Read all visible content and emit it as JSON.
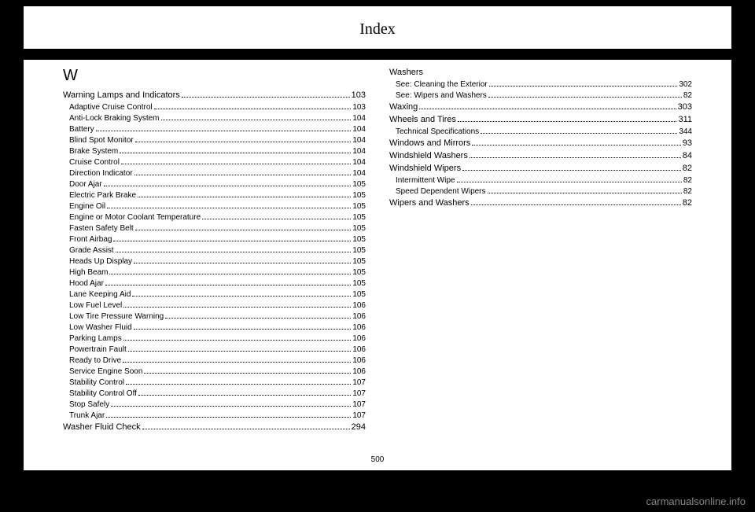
{
  "header": "Index",
  "page_number": "500",
  "watermark": "carmanualsonline.info",
  "section_letter": "W",
  "entries": [
    {
      "label": "Warning Lamps and Indicators",
      "page": "103",
      "sub": false
    },
    {
      "label": "Adaptive Cruise Control",
      "page": "103",
      "sub": true
    },
    {
      "label": "Anti-Lock Braking System",
      "page": "104",
      "sub": true
    },
    {
      "label": "Battery",
      "page": "104",
      "sub": true
    },
    {
      "label": "Blind Spot Monitor",
      "page": "104",
      "sub": true
    },
    {
      "label": "Brake System",
      "page": "104",
      "sub": true
    },
    {
      "label": "Cruise Control",
      "page": "104",
      "sub": true
    },
    {
      "label": "Direction Indicator",
      "page": "104",
      "sub": true
    },
    {
      "label": "Door Ajar",
      "page": "105",
      "sub": true
    },
    {
      "label": "Electric Park Brake",
      "page": "105",
      "sub": true
    },
    {
      "label": "Engine Oil",
      "page": "105",
      "sub": true
    },
    {
      "label": "Engine or Motor Coolant Temperature",
      "page": "105",
      "sub": true
    },
    {
      "label": "Fasten Safety Belt",
      "page": "105",
      "sub": true
    },
    {
      "label": "Front Airbag",
      "page": "105",
      "sub": true
    },
    {
      "label": "Grade Assist",
      "page": "105",
      "sub": true
    },
    {
      "label": "Heads Up Display",
      "page": "105",
      "sub": true
    },
    {
      "label": "High Beam",
      "page": "105",
      "sub": true
    },
    {
      "label": "Hood Ajar",
      "page": "105",
      "sub": true
    },
    {
      "label": "Lane Keeping Aid",
      "page": "105",
      "sub": true
    },
    {
      "label": "Low Fuel Level",
      "page": "106",
      "sub": true
    },
    {
      "label": "Low Tire Pressure Warning",
      "page": "106",
      "sub": true
    },
    {
      "label": "Low Washer Fluid",
      "page": "106",
      "sub": true
    },
    {
      "label": "Parking Lamps",
      "page": "106",
      "sub": true
    },
    {
      "label": "Powertrain Fault",
      "page": "106",
      "sub": true
    },
    {
      "label": "Ready to Drive",
      "page": "106",
      "sub": true
    },
    {
      "label": "Service Engine Soon",
      "page": "106",
      "sub": true
    },
    {
      "label": "Stability Control",
      "page": "107",
      "sub": true
    },
    {
      "label": "Stability Control Off",
      "page": "107",
      "sub": true
    },
    {
      "label": "Stop Safely",
      "page": "107",
      "sub": true
    },
    {
      "label": "Trunk Ajar",
      "page": "107",
      "sub": true
    },
    {
      "label": "Washer Fluid Check",
      "page": "294",
      "sub": false
    },
    {
      "label": "Washers",
      "page": "",
      "sub": false,
      "nopage": true
    },
    {
      "label": "See: Cleaning the Exterior",
      "page": "302",
      "sub": true
    },
    {
      "label": "See: Wipers and Washers",
      "page": "82",
      "sub": true
    },
    {
      "label": "Waxing",
      "page": "303",
      "sub": false
    },
    {
      "label": "Wheels and Tires",
      "page": "311",
      "sub": false
    },
    {
      "label": "Technical Specifications",
      "page": "344",
      "sub": true
    },
    {
      "label": "Windows and Mirrors",
      "page": "93",
      "sub": false
    },
    {
      "label": "Windshield Washers",
      "page": "84",
      "sub": false
    },
    {
      "label": "Windshield Wipers",
      "page": "82",
      "sub": false
    },
    {
      "label": "Intermittent Wipe",
      "page": "82",
      "sub": true
    },
    {
      "label": "Speed Dependent Wipers",
      "page": "82",
      "sub": true
    },
    {
      "label": "Wipers and Washers",
      "page": "82",
      "sub": false
    }
  ]
}
